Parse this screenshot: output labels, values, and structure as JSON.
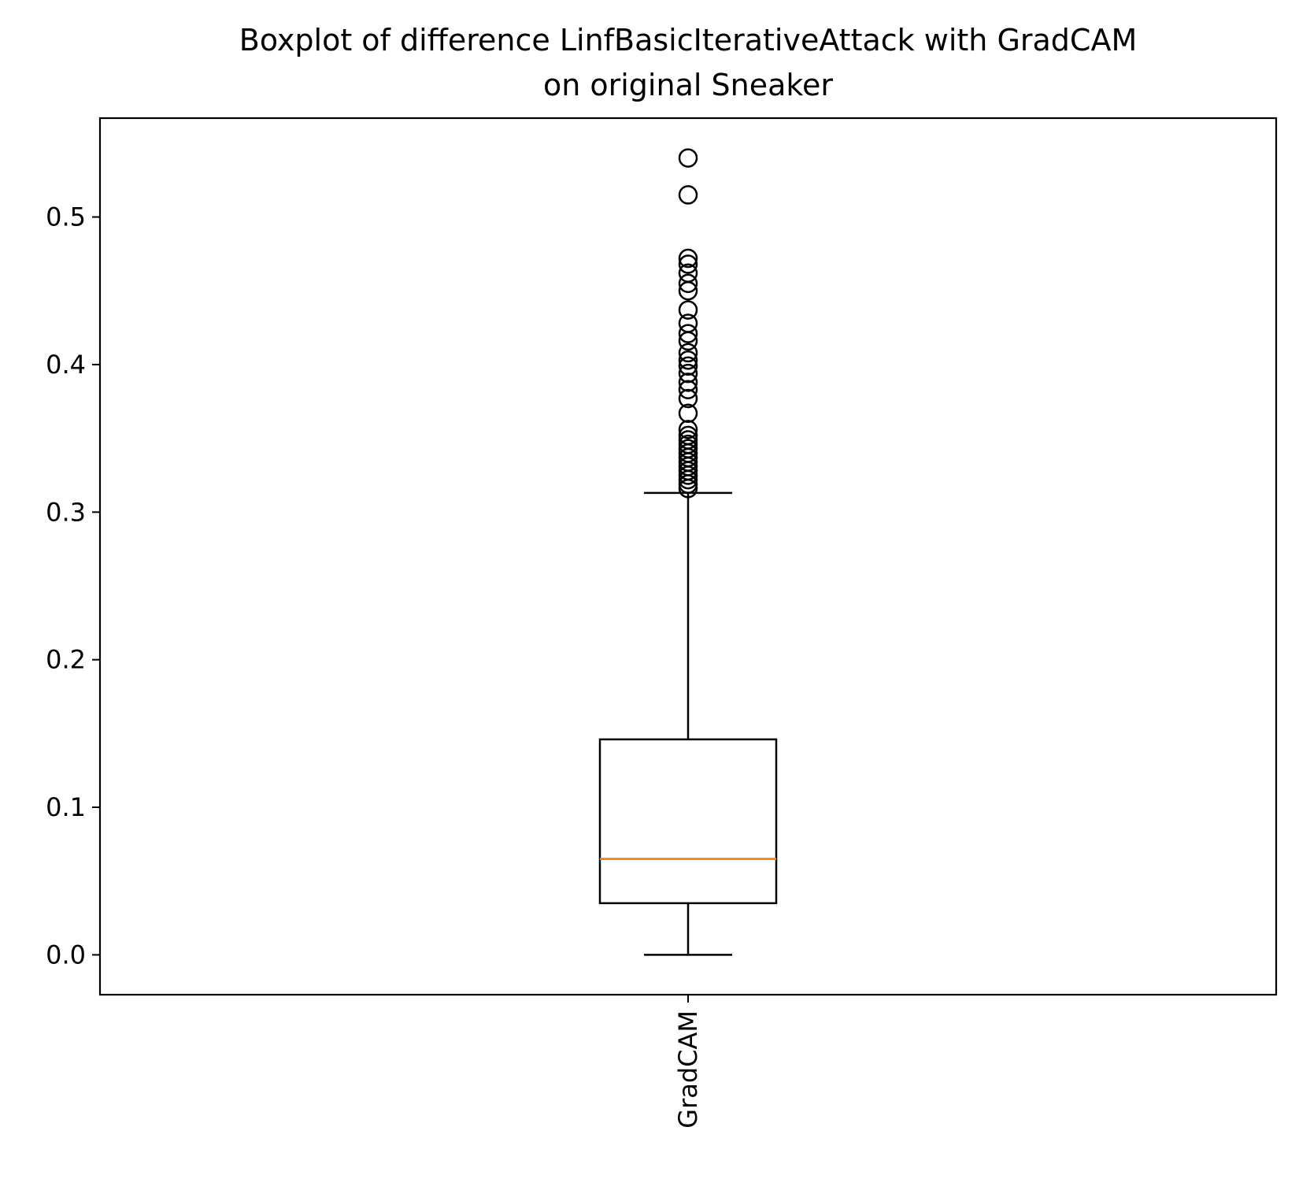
{
  "chart_data": {
    "type": "boxplot",
    "title_lines": [
      "Boxplot of difference LinfBasicIterativeAttack with GradCAM",
      "on original Sneaker"
    ],
    "xlabel": "",
    "ylabel": "",
    "categories": [
      "GradCAM"
    ],
    "ylim": [
      -0.027,
      0.567
    ],
    "yticks": [
      0.0,
      0.1,
      0.2,
      0.3,
      0.4,
      0.5
    ],
    "ytick_labels": [
      "0.0",
      "0.1",
      "0.2",
      "0.3",
      "0.4",
      "0.5"
    ],
    "grid": false,
    "boxes": [
      {
        "label": "GradCAM",
        "whisker_low": 0.0,
        "q1": 0.035,
        "median": 0.065,
        "q3": 0.146,
        "whisker_high": 0.313,
        "outliers": [
          0.54,
          0.515,
          0.472,
          0.468,
          0.462,
          0.455,
          0.45,
          0.437,
          0.428,
          0.421,
          0.416,
          0.408,
          0.403,
          0.399,
          0.394,
          0.388,
          0.383,
          0.377,
          0.367,
          0.356,
          0.352,
          0.349,
          0.346,
          0.343,
          0.34,
          0.337,
          0.334,
          0.331,
          0.328,
          0.325,
          0.322,
          0.319,
          0.316
        ]
      }
    ],
    "colors": {
      "box": "#000000",
      "median": "#ff7f0e",
      "outlier": "#000000",
      "axes": "#000000"
    }
  }
}
